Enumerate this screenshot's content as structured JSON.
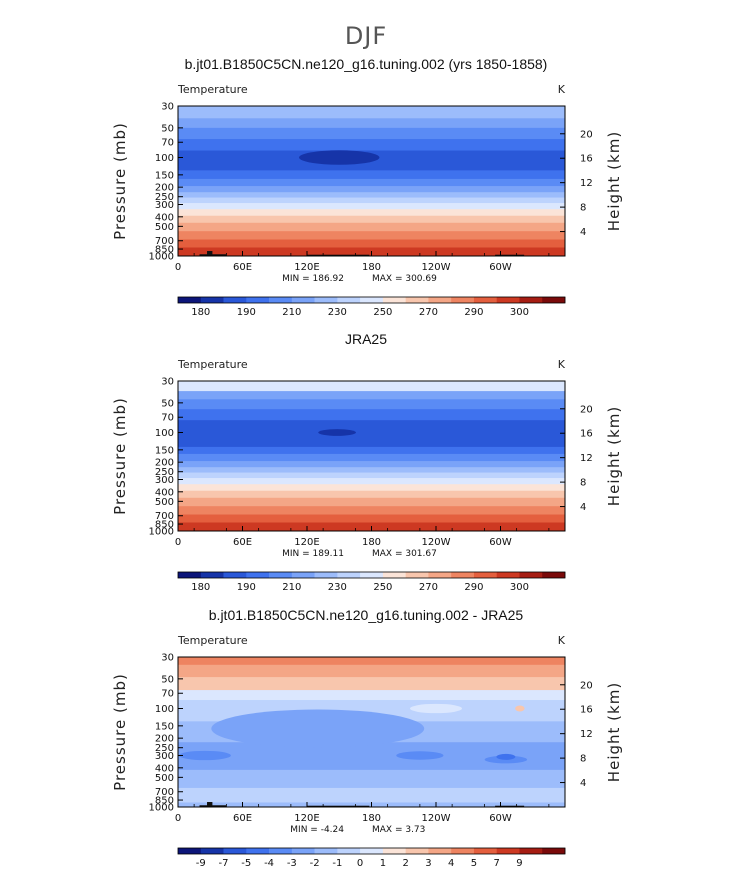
{
  "figure_title": "DJF",
  "colorbar_colors": {
    "temperature": [
      "#0c1579",
      "#1634a8",
      "#2a58d8",
      "#3f72ee",
      "#5a8bf5",
      "#7aa3f8",
      "#9cbcfb",
      "#bdd3fd",
      "#dbe7fe",
      "#fbe4d8",
      "#f8c6ad",
      "#f4a686",
      "#ee8461",
      "#e45f3e",
      "#cd3922",
      "#a61d13",
      "#7a0a0a"
    ],
    "difference": [
      "#0c1579",
      "#1634a8",
      "#2a58d8",
      "#3f72ee",
      "#5a8bf5",
      "#7aa3f8",
      "#9cbcfb",
      "#bdd3fd",
      "#dbe7fe",
      "#fbe4d8",
      "#f8c6ad",
      "#f4a686",
      "#ee8461",
      "#e45f3e",
      "#cd3922",
      "#a61d13",
      "#7a0a0a"
    ]
  },
  "terrain_color": "#111111",
  "chart_data": [
    {
      "type": "heatmap",
      "name": "model",
      "title": "b.jt01.B1850C5CN.ne120_g16.tuning.002 (yrs 1850-1858)",
      "variable": "Temperature",
      "units": "K",
      "xlabel": "",
      "ylabel": "Pressure  (mb)",
      "ylabel_right": "Height  (km)",
      "x_ticks": [
        "0",
        "60E",
        "120E",
        "180",
        "120W",
        "60W"
      ],
      "y_ticks": [
        "30",
        "50",
        "70",
        "100",
        "150",
        "200",
        "250",
        "300",
        "400",
        "500",
        "700",
        "850",
        "1000"
      ],
      "y_ticks_right": [
        "20",
        "16",
        "12",
        "8",
        "4"
      ],
      "min_label": "MIN = 186.92",
      "max_label": "MAX = 300.69",
      "min": 186.92,
      "max": 300.69,
      "colorbar_labels": [
        "180",
        "190",
        "210",
        "230",
        "250",
        "270",
        "290",
        "300"
      ],
      "bands": [
        {
          "p_top": 30,
          "p_bottom": 40,
          "color_index": 6
        },
        {
          "p_top": 40,
          "p_bottom": 50,
          "color_index": 5
        },
        {
          "p_top": 50,
          "p_bottom": 65,
          "color_index": 4
        },
        {
          "p_top": 65,
          "p_bottom": 85,
          "color_index": 3
        },
        {
          "p_top": 85,
          "p_bottom": 135,
          "color_index": 2
        },
        {
          "p_top": 135,
          "p_bottom": 165,
          "color_index": 3
        },
        {
          "p_top": 165,
          "p_bottom": 195,
          "color_index": 4
        },
        {
          "p_top": 195,
          "p_bottom": 225,
          "color_index": 5
        },
        {
          "p_top": 225,
          "p_bottom": 255,
          "color_index": 6
        },
        {
          "p_top": 255,
          "p_bottom": 290,
          "color_index": 7
        },
        {
          "p_top": 290,
          "p_bottom": 335,
          "color_index": 8
        },
        {
          "p_top": 335,
          "p_bottom": 390,
          "color_index": 9
        },
        {
          "p_top": 390,
          "p_bottom": 460,
          "color_index": 10
        },
        {
          "p_top": 460,
          "p_bottom": 560,
          "color_index": 11
        },
        {
          "p_top": 560,
          "p_bottom": 680,
          "color_index": 12
        },
        {
          "p_top": 680,
          "p_bottom": 820,
          "color_index": 13
        },
        {
          "p_top": 820,
          "p_bottom": 1000,
          "color_index": 14
        }
      ],
      "blobs": [
        {
          "lon": 150,
          "p": 100,
          "dlon": 34,
          "color_index": 1
        }
      ],
      "terrain": [
        {
          "lon_start": 20,
          "lon_end": 45,
          "p_top": 960
        },
        {
          "lon_start": 27,
          "lon_end": 32,
          "p_top": 890
        },
        {
          "lon_start": 120,
          "lon_end": 178,
          "p_top": 970
        },
        {
          "lon_start": 295,
          "lon_end": 322,
          "p_top": 970
        }
      ]
    },
    {
      "type": "heatmap",
      "name": "obs",
      "title": "JRA25",
      "variable": "Temperature",
      "units": "K",
      "xlabel": "",
      "ylabel": "Pressure  (mb)",
      "ylabel_right": "Height  (km)",
      "x_ticks": [
        "0",
        "60E",
        "120E",
        "180",
        "120W",
        "60W"
      ],
      "y_ticks": [
        "30",
        "50",
        "70",
        "100",
        "150",
        "200",
        "250",
        "300",
        "400",
        "500",
        "700",
        "850",
        "1000"
      ],
      "y_ticks_right": [
        "20",
        "16",
        "12",
        "8",
        "4"
      ],
      "min_label": "MIN = 189.11",
      "max_label": "MAX = 301.67",
      "min": 189.11,
      "max": 301.67,
      "colorbar_labels": [
        "180",
        "190",
        "210",
        "230",
        "250",
        "270",
        "290",
        "300"
      ],
      "bands": [
        {
          "p_top": 30,
          "p_bottom": 38,
          "color_index": 8
        },
        {
          "p_top": 38,
          "p_bottom": 46,
          "color_index": 5
        },
        {
          "p_top": 46,
          "p_bottom": 58,
          "color_index": 4
        },
        {
          "p_top": 58,
          "p_bottom": 75,
          "color_index": 3
        },
        {
          "p_top": 75,
          "p_bottom": 140,
          "color_index": 2
        },
        {
          "p_top": 140,
          "p_bottom": 165,
          "color_index": 3
        },
        {
          "p_top": 165,
          "p_bottom": 195,
          "color_index": 4
        },
        {
          "p_top": 195,
          "p_bottom": 225,
          "color_index": 5
        },
        {
          "p_top": 225,
          "p_bottom": 255,
          "color_index": 6
        },
        {
          "p_top": 255,
          "p_bottom": 290,
          "color_index": 7
        },
        {
          "p_top": 290,
          "p_bottom": 335,
          "color_index": 8
        },
        {
          "p_top": 335,
          "p_bottom": 390,
          "color_index": 9
        },
        {
          "p_top": 390,
          "p_bottom": 460,
          "color_index": 10
        },
        {
          "p_top": 460,
          "p_bottom": 560,
          "color_index": 11
        },
        {
          "p_top": 560,
          "p_bottom": 680,
          "color_index": 12
        },
        {
          "p_top": 680,
          "p_bottom": 820,
          "color_index": 13
        },
        {
          "p_top": 820,
          "p_bottom": 1000,
          "color_index": 14
        }
      ],
      "blobs": [
        {
          "lon": 148,
          "p": 100,
          "dlon": 16,
          "color_index": 1
        }
      ],
      "terrain": []
    },
    {
      "type": "heatmap",
      "name": "diff",
      "title": "b.jt01.B1850C5CN.ne120_g16.tuning.002 - JRA25",
      "variable": "Temperature",
      "units": "K",
      "xlabel": "",
      "ylabel": "Pressure  (mb)",
      "ylabel_right": "Height  (km)",
      "x_ticks": [
        "0",
        "60E",
        "120E",
        "180",
        "120W",
        "60W"
      ],
      "y_ticks": [
        "30",
        "50",
        "70",
        "100",
        "150",
        "200",
        "250",
        "300",
        "400",
        "500",
        "700",
        "850",
        "1000"
      ],
      "y_ticks_right": [
        "20",
        "16",
        "12",
        "8",
        "4"
      ],
      "min_label": "MIN =   -4.24",
      "max_label": "MAX =    3.73",
      "min": -4.24,
      "max": 3.73,
      "colorbar_labels": [
        "-9",
        "-7",
        "-5",
        "-4",
        "-3",
        "-2",
        "-1",
        "0",
        "1",
        "2",
        "3",
        "4",
        "5",
        "7",
        "9"
      ],
      "bands": [
        {
          "p_top": 30,
          "p_bottom": 36,
          "color_index": 12
        },
        {
          "p_top": 36,
          "p_bottom": 48,
          "color_index": 11
        },
        {
          "p_top": 48,
          "p_bottom": 65,
          "color_index": 10
        },
        {
          "p_top": 65,
          "p_bottom": 82,
          "color_index": 8
        },
        {
          "p_top": 82,
          "p_bottom": 135,
          "color_index": 7
        },
        {
          "p_top": 135,
          "p_bottom": 220,
          "color_index": 6
        },
        {
          "p_top": 220,
          "p_bottom": 420,
          "color_index": 5
        },
        {
          "p_top": 420,
          "p_bottom": 640,
          "color_index": 6
        },
        {
          "p_top": 640,
          "p_bottom": 900,
          "color_index": 7
        },
        {
          "p_top": 900,
          "p_bottom": 1000,
          "color_index": 6
        }
      ],
      "blobs": [
        {
          "lon": 130,
          "p": 160,
          "dlon": 90,
          "color_index": 5
        },
        {
          "lon": 25,
          "p": 300,
          "dlon": 22,
          "color_index": 4
        },
        {
          "lon": 305,
          "p": 330,
          "dlon": 18,
          "color_index": 4
        },
        {
          "lon": 305,
          "p": 310,
          "dlon": 8,
          "color_index": 3
        },
        {
          "lon": 225,
          "p": 300,
          "dlon": 20,
          "color_index": 4
        },
        {
          "lon": 240,
          "p": 100,
          "dlon": 22,
          "color_index": 8
        },
        {
          "lon": 318,
          "p": 100,
          "dlon": 4,
          "color_index": 10
        }
      ],
      "terrain": [
        {
          "lon_start": 20,
          "lon_end": 45,
          "p_top": 960
        },
        {
          "lon_start": 27,
          "lon_end": 32,
          "p_top": 890
        },
        {
          "lon_start": 120,
          "lon_end": 178,
          "p_top": 970
        },
        {
          "lon_start": 295,
          "lon_end": 322,
          "p_top": 970
        }
      ]
    }
  ]
}
